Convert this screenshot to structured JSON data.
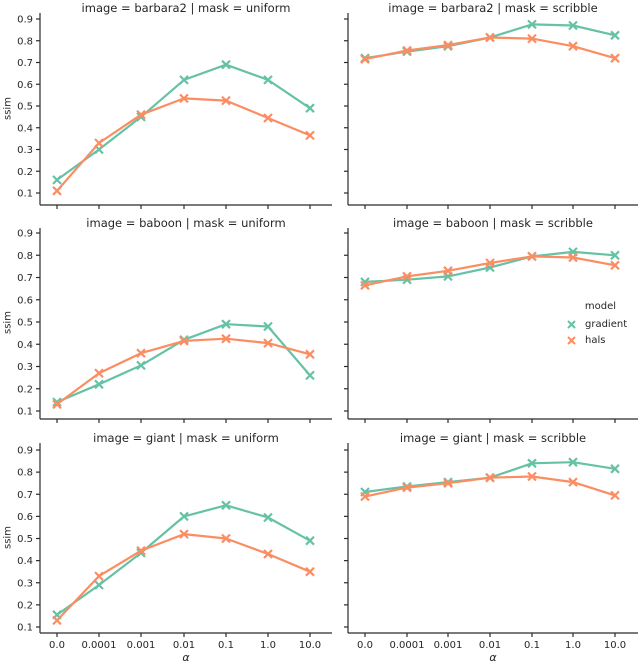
{
  "figure": {
    "ylabel": "ssim",
    "xlabel": "α",
    "x_values": [
      0.0,
      0.0001,
      0.001,
      0.01,
      0.1,
      1.0,
      10.0
    ],
    "x_tick_labels": [
      "0.0",
      "0.0001",
      "0.001",
      "0.01",
      "0.1",
      "1.0",
      "10.0"
    ],
    "y_tick_labels": [
      "0.9",
      "0.8",
      "0.7",
      "0.6",
      "0.5",
      "0.4",
      "0.3",
      "0.2",
      "0.1"
    ],
    "text_color": "#262626",
    "spine_color": "#2b2b2b",
    "legend": {
      "title": "model",
      "entries": [
        {
          "label": "gradient",
          "color": "#66c2a5"
        },
        {
          "label": "hals",
          "color": "#fc8d62"
        }
      ]
    },
    "colors": {
      "gradient": "#66c2a5",
      "hals": "#fc8d62"
    }
  },
  "chart_data": [
    {
      "type": "line",
      "title": "image = barbara2 | mask = uniform",
      "facet": {
        "image": "barbara2",
        "mask": "uniform"
      },
      "x": [
        "0.0",
        "0.0001",
        "0.001",
        "0.01",
        "0.1",
        "1.0",
        "10.0"
      ],
      "ylim": [
        0.05,
        0.95
      ],
      "series": [
        {
          "name": "gradient",
          "values": [
            0.16,
            0.3,
            0.45,
            0.62,
            0.69,
            0.62,
            0.49
          ]
        },
        {
          "name": "hals",
          "values": [
            0.11,
            0.33,
            0.46,
            0.535,
            0.525,
            0.445,
            0.365
          ]
        }
      ]
    },
    {
      "type": "line",
      "title": "image = barbara2 | mask = scribble",
      "facet": {
        "image": "barbara2",
        "mask": "scribble"
      },
      "x": [
        "0.0",
        "0.0001",
        "0.001",
        "0.01",
        "0.1",
        "1.0",
        "10.0"
      ],
      "ylim": [
        0.05,
        0.95
      ],
      "series": [
        {
          "name": "gradient",
          "values": [
            0.72,
            0.75,
            0.775,
            0.815,
            0.875,
            0.87,
            0.825
          ]
        },
        {
          "name": "hals",
          "values": [
            0.715,
            0.755,
            0.78,
            0.815,
            0.81,
            0.775,
            0.72
          ]
        }
      ]
    },
    {
      "type": "line",
      "title": "image = baboon | mask = uniform",
      "facet": {
        "image": "baboon",
        "mask": "uniform"
      },
      "x": [
        "0.0",
        "0.0001",
        "0.001",
        "0.01",
        "0.1",
        "1.0",
        "10.0"
      ],
      "ylim": [
        0.05,
        0.95
      ],
      "series": [
        {
          "name": "gradient",
          "values": [
            0.14,
            0.22,
            0.305,
            0.42,
            0.49,
            0.48,
            0.26
          ]
        },
        {
          "name": "hals",
          "values": [
            0.13,
            0.27,
            0.36,
            0.415,
            0.425,
            0.405,
            0.355
          ]
        }
      ]
    },
    {
      "type": "line",
      "title": "image = baboon | mask = scribble",
      "facet": {
        "image": "baboon",
        "mask": "scribble"
      },
      "x": [
        "0.0",
        "0.0001",
        "0.001",
        "0.01",
        "0.1",
        "1.0",
        "10.0"
      ],
      "ylim": [
        0.05,
        0.95
      ],
      "series": [
        {
          "name": "gradient",
          "values": [
            0.68,
            0.69,
            0.705,
            0.745,
            0.795,
            0.815,
            0.8
          ]
        },
        {
          "name": "hals",
          "values": [
            0.665,
            0.705,
            0.73,
            0.765,
            0.795,
            0.79,
            0.755
          ]
        }
      ]
    },
    {
      "type": "line",
      "title": "image = giant | mask = uniform",
      "facet": {
        "image": "giant",
        "mask": "uniform"
      },
      "x": [
        "0.0",
        "0.0001",
        "0.001",
        "0.01",
        "0.1",
        "1.0",
        "10.0"
      ],
      "ylim": [
        0.05,
        0.95
      ],
      "series": [
        {
          "name": "gradient",
          "values": [
            0.155,
            0.29,
            0.435,
            0.6,
            0.65,
            0.595,
            0.49
          ]
        },
        {
          "name": "hals",
          "values": [
            0.13,
            0.33,
            0.445,
            0.52,
            0.5,
            0.43,
            0.35
          ]
        }
      ]
    },
    {
      "type": "line",
      "title": "image = giant | mask = scribble",
      "facet": {
        "image": "giant",
        "mask": "scribble"
      },
      "x": [
        "0.0",
        "0.0001",
        "0.001",
        "0.01",
        "0.1",
        "1.0",
        "10.0"
      ],
      "ylim": [
        0.05,
        0.95
      ],
      "series": [
        {
          "name": "gradient",
          "values": [
            0.71,
            0.735,
            0.755,
            0.775,
            0.84,
            0.845,
            0.815
          ]
        },
        {
          "name": "hals",
          "values": [
            0.69,
            0.73,
            0.75,
            0.775,
            0.78,
            0.755,
            0.695
          ]
        }
      ]
    }
  ]
}
